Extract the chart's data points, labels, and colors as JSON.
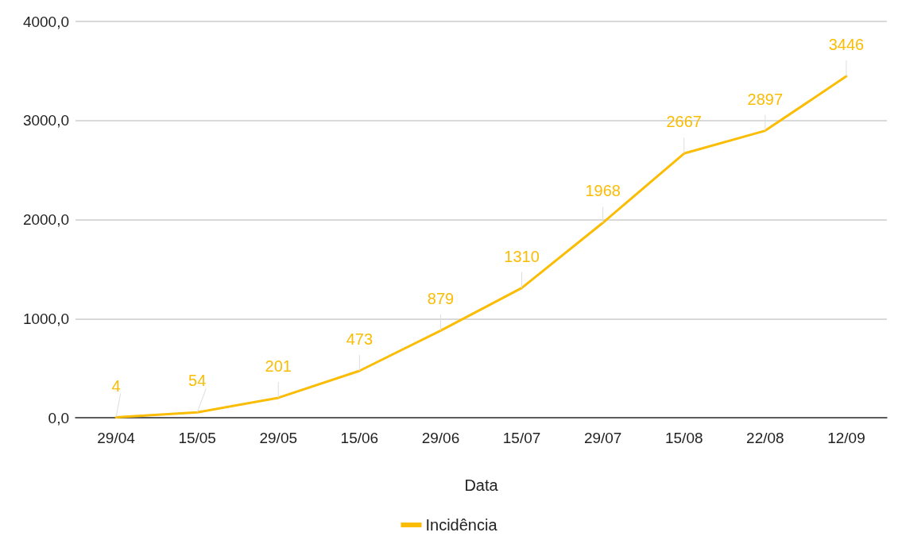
{
  "chart_data": {
    "type": "line",
    "xlabel": "Data",
    "categories": [
      "29/04",
      "15/05",
      "29/05",
      "15/06",
      "29/06",
      "15/07",
      "29/07",
      "15/08",
      "22/08",
      "12/09"
    ],
    "series": [
      {
        "name": "Incidência",
        "color": "#fbbc04",
        "values": [
          4,
          54,
          201,
          473,
          879,
          1310,
          1968,
          2667,
          2897,
          3446
        ]
      }
    ],
    "ylim": [
      0,
      4000
    ],
    "yticks": [
      {
        "value": 0,
        "label": "0,0"
      },
      {
        "value": 1000,
        "label": "1000,0"
      },
      {
        "value": 2000,
        "label": "2000,0"
      },
      {
        "value": 3000,
        "label": "3000,0"
      },
      {
        "value": 4000,
        "label": "4000,0"
      }
    ],
    "grid": "y",
    "legend": "bottom",
    "data_labels": true,
    "marker": "none",
    "line_style": "solid"
  }
}
